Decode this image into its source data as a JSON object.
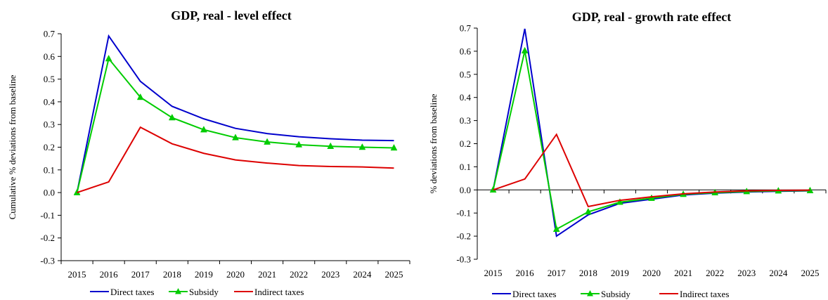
{
  "chart_data": [
    {
      "type": "line",
      "title": "GDP, real - level effect",
      "xlabel": "",
      "ylabel": "Cumulative % deviations from baseline",
      "categories": [
        "2015",
        "2016",
        "2017",
        "2018",
        "2019",
        "2020",
        "2021",
        "2022",
        "2023",
        "2024",
        "2025"
      ],
      "ylim": [
        -0.3,
        0.7
      ],
      "yticks": [
        "0.7",
        "0.6",
        "0.5",
        "0.4",
        "0.3",
        "0.2",
        "0.1",
        "0.0",
        "-0.1",
        "-0.2",
        "-0.3"
      ],
      "legend_position": "bottom",
      "grid": false,
      "series": [
        {
          "name": "Direct taxes",
          "color": "#0000cc",
          "marker": "none",
          "values": [
            0,
            0.69,
            0.49,
            0.38,
            0.325,
            0.283,
            0.26,
            0.246,
            0.237,
            0.231,
            0.229
          ]
        },
        {
          "name": "Subsidy",
          "color": "#00cc00",
          "marker": "triangle",
          "values": [
            0,
            0.59,
            0.42,
            0.33,
            0.277,
            0.242,
            0.223,
            0.211,
            0.204,
            0.2,
            0.197
          ]
        },
        {
          "name": "Indirect taxes",
          "color": "#dd0000",
          "marker": "none",
          "values": [
            0,
            0.047,
            0.288,
            0.215,
            0.173,
            0.144,
            0.13,
            0.119,
            0.115,
            0.113,
            0.108
          ]
        }
      ]
    },
    {
      "type": "line",
      "title": "GDP, real - growth rate effect",
      "xlabel": "",
      "ylabel": "% deviations from baseline",
      "categories": [
        "2015",
        "2016",
        "2017",
        "2018",
        "2019",
        "2020",
        "2021",
        "2022",
        "2023",
        "2024",
        "2025"
      ],
      "ylim": [
        -0.3,
        0.7
      ],
      "yticks": [
        "0.7",
        "0.6",
        "0.5",
        "0.4",
        "0.3",
        "0.2",
        "0.1",
        "0.0",
        "-0.1",
        "-0.2",
        "-0.3"
      ],
      "legend_position": "bottom",
      "grid": false,
      "series": [
        {
          "name": "Direct taxes",
          "color": "#0000cc",
          "marker": "none",
          "values": [
            0,
            0.697,
            -0.2,
            -0.108,
            -0.058,
            -0.04,
            -0.022,
            -0.014,
            -0.009,
            -0.006,
            -0.004
          ]
        },
        {
          "name": "Subsidy",
          "color": "#00cc00",
          "marker": "triangle",
          "values": [
            0,
            0.602,
            -0.17,
            -0.095,
            -0.053,
            -0.036,
            -0.019,
            -0.012,
            -0.007,
            -0.004,
            -0.003
          ]
        },
        {
          "name": "Indirect taxes",
          "color": "#dd0000",
          "marker": "none",
          "values": [
            0,
            0.047,
            0.24,
            -0.072,
            -0.045,
            -0.03,
            -0.017,
            -0.009,
            -0.004,
            -0.002,
            -0.001
          ]
        }
      ]
    }
  ]
}
